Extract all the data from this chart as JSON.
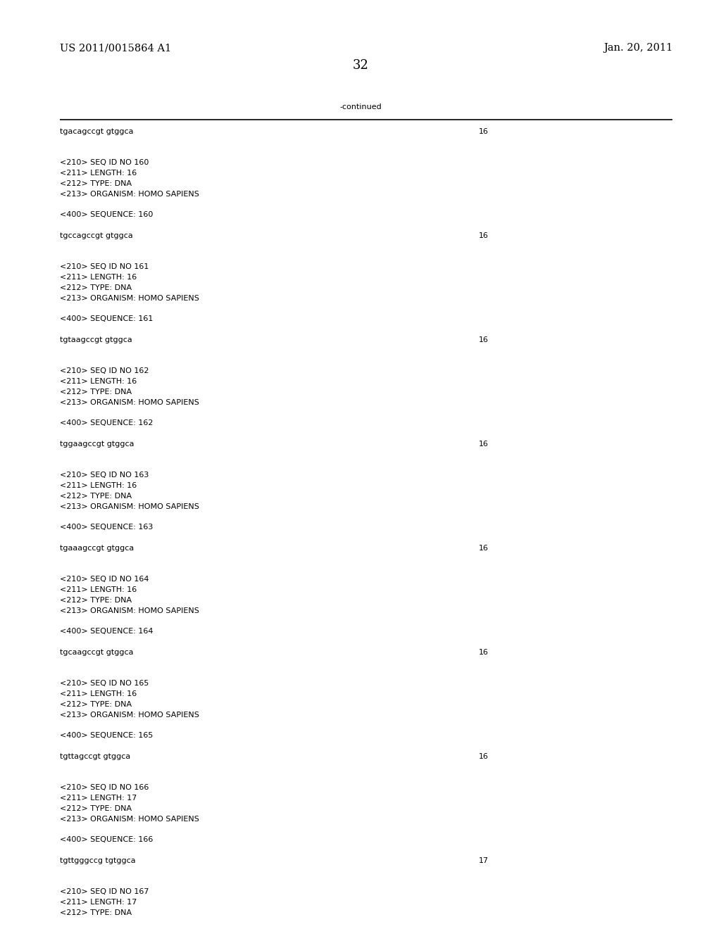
{
  "bg_color": "#ffffff",
  "header_left": "US 2011/0015864 A1",
  "header_right": "Jan. 20, 2011",
  "page_number": "32",
  "continued_label": "-continued",
  "content_lines": [
    {
      "text": "tgacagccgt gtggca",
      "right_val": "16"
    },
    {
      "text": ""
    },
    {
      "text": ""
    },
    {
      "text": "<210> SEQ ID NO 160"
    },
    {
      "text": "<211> LENGTH: 16"
    },
    {
      "text": "<212> TYPE: DNA"
    },
    {
      "text": "<213> ORGANISM: HOMO SAPIENS"
    },
    {
      "text": ""
    },
    {
      "text": "<400> SEQUENCE: 160"
    },
    {
      "text": ""
    },
    {
      "text": "tgccagccgt gtggca",
      "right_val": "16"
    },
    {
      "text": ""
    },
    {
      "text": ""
    },
    {
      "text": "<210> SEQ ID NO 161"
    },
    {
      "text": "<211> LENGTH: 16"
    },
    {
      "text": "<212> TYPE: DNA"
    },
    {
      "text": "<213> ORGANISM: HOMO SAPIENS"
    },
    {
      "text": ""
    },
    {
      "text": "<400> SEQUENCE: 161"
    },
    {
      "text": ""
    },
    {
      "text": "tgtaagccgt gtggca",
      "right_val": "16"
    },
    {
      "text": ""
    },
    {
      "text": ""
    },
    {
      "text": "<210> SEQ ID NO 162"
    },
    {
      "text": "<211> LENGTH: 16"
    },
    {
      "text": "<212> TYPE: DNA"
    },
    {
      "text": "<213> ORGANISM: HOMO SAPIENS"
    },
    {
      "text": ""
    },
    {
      "text": "<400> SEQUENCE: 162"
    },
    {
      "text": ""
    },
    {
      "text": "tggaagccgt gtggca",
      "right_val": "16"
    },
    {
      "text": ""
    },
    {
      "text": ""
    },
    {
      "text": "<210> SEQ ID NO 163"
    },
    {
      "text": "<211> LENGTH: 16"
    },
    {
      "text": "<212> TYPE: DNA"
    },
    {
      "text": "<213> ORGANISM: HOMO SAPIENS"
    },
    {
      "text": ""
    },
    {
      "text": "<400> SEQUENCE: 163"
    },
    {
      "text": ""
    },
    {
      "text": "tgaaagccgt gtggca",
      "right_val": "16"
    },
    {
      "text": ""
    },
    {
      "text": ""
    },
    {
      "text": "<210> SEQ ID NO 164"
    },
    {
      "text": "<211> LENGTH: 16"
    },
    {
      "text": "<212> TYPE: DNA"
    },
    {
      "text": "<213> ORGANISM: HOMO SAPIENS"
    },
    {
      "text": ""
    },
    {
      "text": "<400> SEQUENCE: 164"
    },
    {
      "text": ""
    },
    {
      "text": "tgcaagccgt gtggca",
      "right_val": "16"
    },
    {
      "text": ""
    },
    {
      "text": ""
    },
    {
      "text": "<210> SEQ ID NO 165"
    },
    {
      "text": "<211> LENGTH: 16"
    },
    {
      "text": "<212> TYPE: DNA"
    },
    {
      "text": "<213> ORGANISM: HOMO SAPIENS"
    },
    {
      "text": ""
    },
    {
      "text": "<400> SEQUENCE: 165"
    },
    {
      "text": ""
    },
    {
      "text": "tgttagccgt gtggca",
      "right_val": "16"
    },
    {
      "text": ""
    },
    {
      "text": ""
    },
    {
      "text": "<210> SEQ ID NO 166"
    },
    {
      "text": "<211> LENGTH: 17"
    },
    {
      "text": "<212> TYPE: DNA"
    },
    {
      "text": "<213> ORGANISM: HOMO SAPIENS"
    },
    {
      "text": ""
    },
    {
      "text": "<400> SEQUENCE: 166"
    },
    {
      "text": ""
    },
    {
      "text": "tgttgggccg tgtggca",
      "right_val": "17"
    },
    {
      "text": ""
    },
    {
      "text": ""
    },
    {
      "text": "<210> SEQ ID NO 167"
    },
    {
      "text": "<211> LENGTH: 17"
    },
    {
      "text": "<212> TYPE: DNA"
    }
  ],
  "monospace_font": "Courier New",
  "serif_font": "DejaVu Serif",
  "text_color": "#000000",
  "line_color": "#000000",
  "content_font_size": 8.0,
  "header_font_size": 10.5,
  "page_num_font_size": 13
}
